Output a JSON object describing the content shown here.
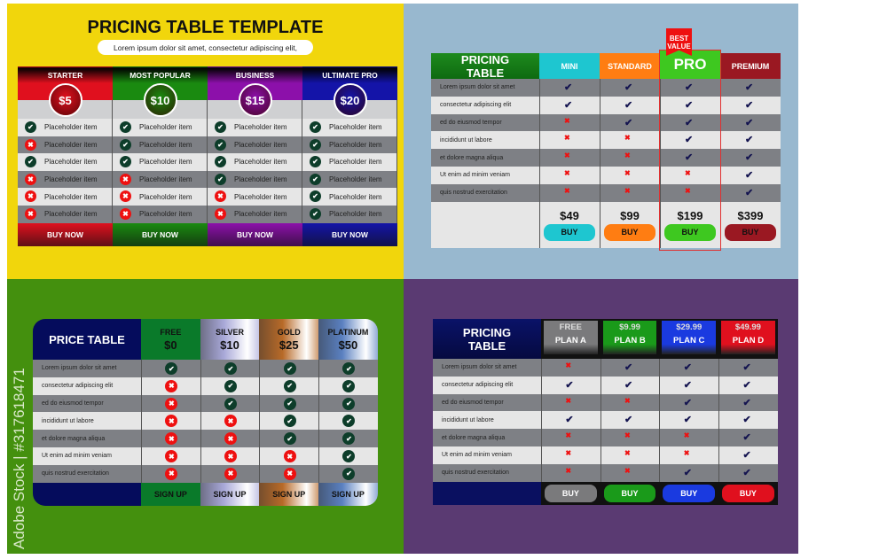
{
  "watermark": "Adobe Stock | #317618471",
  "template1": {
    "title": "PRICING TABLE TEMPLATE",
    "subtitle": "Lorem ipsum dolor sit amet, consectetur adipiscing elit,",
    "item_label": "Placeholder item",
    "plans": [
      {
        "name": "STARTER",
        "price": "$5",
        "button": "BUY NOW",
        "color": "#e0101e",
        "features": [
          1,
          0,
          1,
          0,
          0,
          0
        ]
      },
      {
        "name": "MOST POPULAR",
        "price": "$10",
        "button": "BUY NOW",
        "color": "#1a8a10",
        "features": [
          1,
          1,
          1,
          0,
          0,
          0
        ]
      },
      {
        "name": "BUSINESS",
        "price": "$15",
        "button": "BUY NOW",
        "color": "#8c10aa",
        "features": [
          1,
          1,
          1,
          1,
          0,
          0
        ]
      },
      {
        "name": "ULTIMATE PRO",
        "price": "$20",
        "button": "BUY NOW",
        "color": "#1414a8",
        "features": [
          1,
          1,
          1,
          1,
          1,
          1
        ]
      }
    ],
    "background": "#f1d60c"
  },
  "features": [
    "Lorem ipsum dolor sit amet",
    "consectetur adipiscing elit",
    "ed do eiusmod tempor",
    "incididunt ut labore",
    "et dolore magna aliqua",
    "Ut enim ad minim veniam",
    "quis nostrud exercitation"
  ],
  "template2": {
    "title": "PRICING TABLE",
    "badge": "BEST VALUE",
    "background": "#98b8cf",
    "plans": [
      {
        "name": "MINI",
        "price": "$49",
        "button": "BUY",
        "color": "#1ec6d0",
        "features": [
          1,
          1,
          0,
          0,
          0,
          0,
          0
        ]
      },
      {
        "name": "STANDARD",
        "price": "$99",
        "button": "BUY",
        "color": "#ff7d12",
        "features": [
          1,
          1,
          1,
          0,
          0,
          0,
          0
        ]
      },
      {
        "name": "PRO",
        "price": "$199",
        "button": "BUY",
        "color": "#3ec820",
        "features": [
          1,
          1,
          1,
          1,
          1,
          0,
          0
        ],
        "highlighted": true
      },
      {
        "name": "PREMIUM",
        "price": "$399",
        "button": "BUY",
        "color": "#9a1822",
        "features": [
          1,
          1,
          1,
          1,
          1,
          1,
          1
        ]
      }
    ]
  },
  "template3": {
    "title": "PRICE TABLE",
    "background": "#44900e",
    "plans": [
      {
        "name": "FREE",
        "price": "$0",
        "button": "SIGN UP",
        "color": "#0a7a2a",
        "features": [
          1,
          0,
          0,
          0,
          0,
          0,
          0
        ]
      },
      {
        "name": "SILVER",
        "price": "$10",
        "button": "SIGN UP",
        "color": "#a8a8d8",
        "features": [
          1,
          1,
          1,
          0,
          0,
          0,
          0
        ]
      },
      {
        "name": "GOLD",
        "price": "$25",
        "button": "SIGN UP",
        "color": "#b86a28",
        "features": [
          1,
          1,
          1,
          1,
          1,
          0,
          0
        ]
      },
      {
        "name": "PLATINUM",
        "price": "$50",
        "button": "SIGN UP",
        "color": "#5a80c0",
        "features": [
          1,
          1,
          1,
          1,
          1,
          1,
          1
        ]
      }
    ]
  },
  "template4": {
    "title": "PRICING TABLE",
    "background": "#5a3a72",
    "plans": [
      {
        "name": "PLAN A",
        "price": "FREE",
        "button": "BUY",
        "color": "#7a7a7c",
        "features": [
          0,
          1,
          0,
          1,
          0,
          0,
          0
        ]
      },
      {
        "name": "PLAN B",
        "price": "$9.99",
        "button": "BUY",
        "color": "#1a9a1a",
        "features": [
          1,
          1,
          0,
          1,
          0,
          0,
          0
        ]
      },
      {
        "name": "PLAN C",
        "price": "$29.99",
        "button": "BUY",
        "color": "#1a3ae0",
        "features": [
          1,
          1,
          1,
          1,
          0,
          0,
          1
        ]
      },
      {
        "name": "PLAN D",
        "price": "$49.99",
        "button": "BUY",
        "color": "#e0101e",
        "features": [
          1,
          1,
          1,
          1,
          1,
          1,
          1
        ]
      }
    ]
  }
}
